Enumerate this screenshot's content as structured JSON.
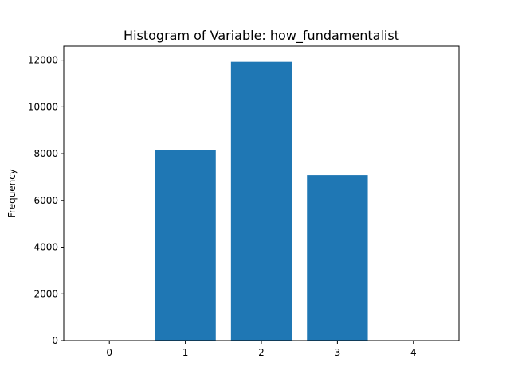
{
  "chart_data": {
    "type": "bar",
    "title": "Histogram of Variable: how_fundamentalist",
    "xlabel": "",
    "ylabel": "Frequency",
    "categories": [
      "0",
      "1",
      "2",
      "3",
      "4"
    ],
    "x": [
      0,
      1,
      2,
      3,
      4
    ],
    "values": [
      0,
      8170,
      11930,
      7080,
      0
    ],
    "xlim": [
      -0.6,
      4.6
    ],
    "ylim": [
      0,
      12600
    ],
    "yticks": [
      0,
      2000,
      4000,
      6000,
      8000,
      10000,
      12000
    ],
    "ytick_labels": [
      "0",
      "2000",
      "4000",
      "6000",
      "8000",
      "10000",
      "12000"
    ],
    "bar_color": "#1f77b4",
    "grid": false,
    "legend": false
  }
}
